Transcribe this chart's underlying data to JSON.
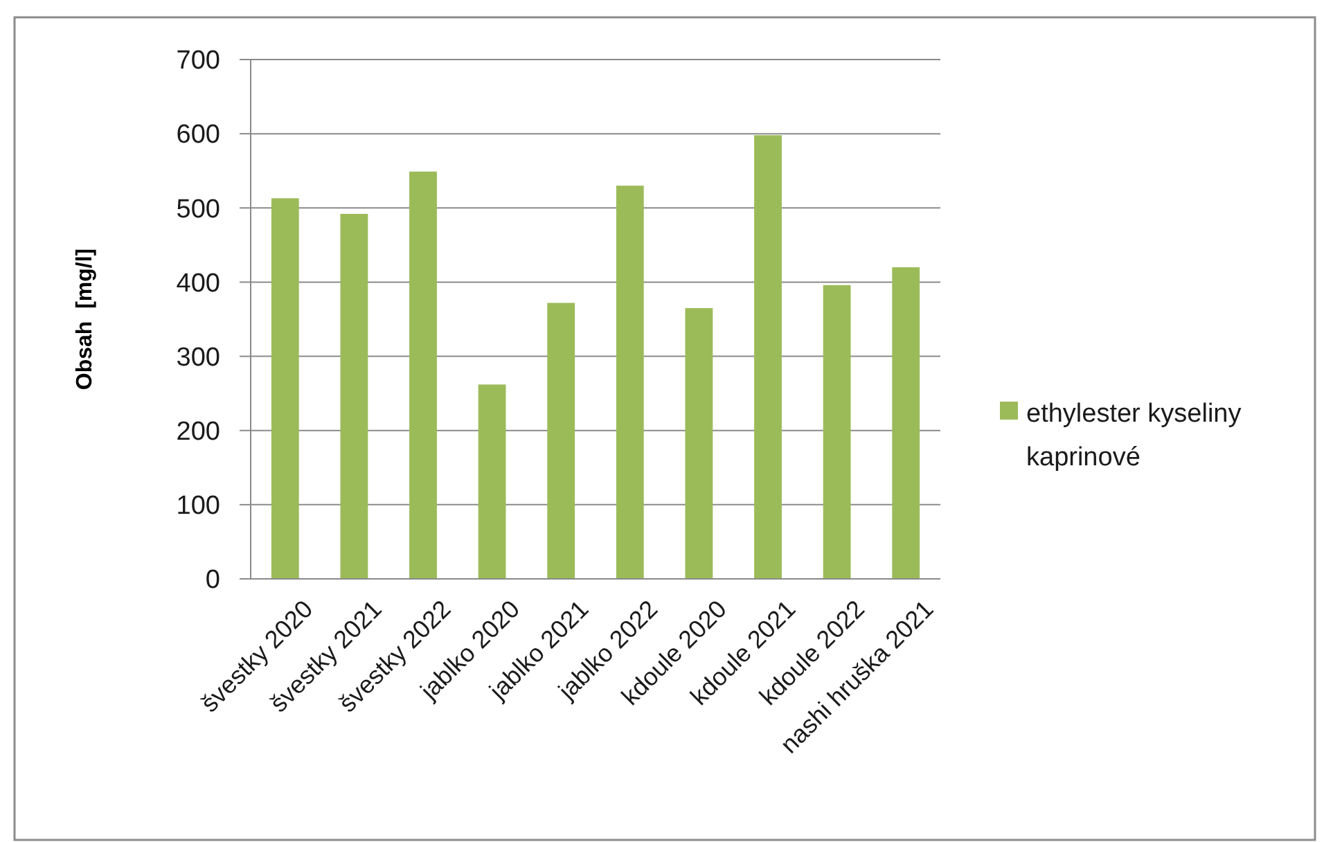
{
  "chart_data": {
    "type": "bar",
    "ylabel": "Obsah  [mg/l]",
    "categories": [
      "švestky 2020",
      "švestky 2021",
      "švestky 2022",
      "jablko 2020",
      "jablko 2021",
      "jablko 2022",
      "kdoule 2020",
      "kdoule 2021",
      "kdoule 2022",
      "nashi hruška 2021"
    ],
    "series": [
      {
        "name": "ethylester kyseliny kaprinové",
        "color": "#9bbb59",
        "values": [
          513,
          492,
          549,
          262,
          372,
          530,
          365,
          598,
          396,
          420
        ]
      }
    ],
    "ylim": [
      0,
      700
    ],
    "yticks": [
      0,
      100,
      200,
      300,
      400,
      500,
      600,
      700
    ],
    "grid": "y",
    "legend": "right"
  }
}
